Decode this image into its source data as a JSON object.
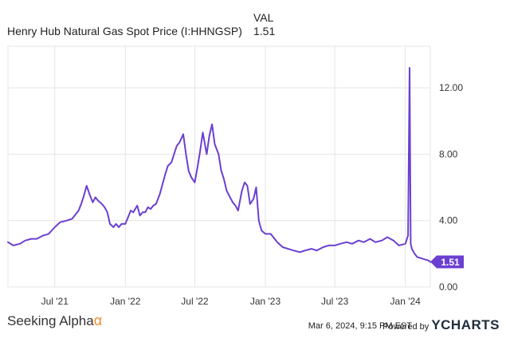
{
  "legend": {
    "column_header": "VAL",
    "series_name": "Henry Hub Natural Gas Spot Price (I:HHNGSP)",
    "series_value": "1.51"
  },
  "footer": {
    "brand": "Seeking Alpha",
    "brand_symbol": "α",
    "timestamp": "Mar 6, 2024, 9:15 PM EST",
    "powered_by": "Powered by",
    "ycharts_y": "Y",
    "ycharts_rest": "CHARTS"
  },
  "colors": {
    "line": "#6b3fd0",
    "grid": "#e4e4e4",
    "brand_accent": "#f28c28"
  },
  "chart_data": {
    "type": "line",
    "title": "",
    "xlabel": "",
    "ylabel": "",
    "ylim": [
      0,
      14.5
    ],
    "yticks": [
      0,
      4,
      8,
      12
    ],
    "ytick_labels": [
      "0.00",
      "4.00",
      "8.00",
      "12.00"
    ],
    "x_range": [
      "2021-03-01",
      "2024-03-06"
    ],
    "xticks": [
      "2021-07-01",
      "2022-01-01",
      "2022-07-01",
      "2023-01-01",
      "2023-07-01",
      "2024-01-01"
    ],
    "xtick_labels": [
      "Jul '21",
      "Jan '22",
      "Jul '22",
      "Jan '23",
      "Jul '23",
      "Jan '24"
    ],
    "grid": true,
    "last_value_label": "1.51",
    "series": [
      {
        "name": "Henry Hub Natural Gas Spot Price (I:HHNGSP)",
        "x": [
          "2021-03-01",
          "2021-03-15",
          "2021-04-01",
          "2021-04-15",
          "2021-05-01",
          "2021-05-15",
          "2021-06-01",
          "2021-06-15",
          "2021-07-01",
          "2021-07-15",
          "2021-08-01",
          "2021-08-15",
          "2021-09-01",
          "2021-09-08",
          "2021-09-15",
          "2021-09-22",
          "2021-10-01",
          "2021-10-08",
          "2021-10-15",
          "2021-10-22",
          "2021-11-01",
          "2021-11-08",
          "2021-11-15",
          "2021-11-22",
          "2021-12-01",
          "2021-12-08",
          "2021-12-15",
          "2021-12-22",
          "2022-01-01",
          "2022-01-08",
          "2022-01-15",
          "2022-01-22",
          "2022-02-01",
          "2022-02-08",
          "2022-02-15",
          "2022-02-22",
          "2022-03-01",
          "2022-03-08",
          "2022-03-15",
          "2022-03-22",
          "2022-04-01",
          "2022-04-08",
          "2022-04-15",
          "2022-04-22",
          "2022-05-01",
          "2022-05-08",
          "2022-05-15",
          "2022-05-22",
          "2022-06-01",
          "2022-06-08",
          "2022-06-15",
          "2022-06-22",
          "2022-07-01",
          "2022-07-08",
          "2022-07-15",
          "2022-07-22",
          "2022-08-01",
          "2022-08-08",
          "2022-08-15",
          "2022-08-22",
          "2022-09-01",
          "2022-09-08",
          "2022-09-15",
          "2022-09-22",
          "2022-10-01",
          "2022-10-08",
          "2022-10-15",
          "2022-10-22",
          "2022-11-01",
          "2022-11-08",
          "2022-11-15",
          "2022-11-22",
          "2022-12-01",
          "2022-12-08",
          "2022-12-15",
          "2022-12-22",
          "2023-01-01",
          "2023-01-15",
          "2023-02-01",
          "2023-02-15",
          "2023-03-01",
          "2023-03-15",
          "2023-04-01",
          "2023-04-15",
          "2023-05-01",
          "2023-05-15",
          "2023-06-01",
          "2023-06-15",
          "2023-07-01",
          "2023-07-15",
          "2023-08-01",
          "2023-08-15",
          "2023-09-01",
          "2023-09-15",
          "2023-10-01",
          "2023-10-15",
          "2023-11-01",
          "2023-11-15",
          "2023-12-01",
          "2023-12-15",
          "2024-01-01",
          "2024-01-08",
          "2024-01-12",
          "2024-01-15",
          "2024-01-18",
          "2024-01-25",
          "2024-02-01",
          "2024-02-15",
          "2024-03-01",
          "2024-03-06"
        ],
        "values": [
          2.7,
          2.5,
          2.6,
          2.8,
          2.9,
          2.9,
          3.1,
          3.2,
          3.6,
          3.9,
          4.0,
          4.1,
          4.6,
          5.0,
          5.5,
          6.1,
          5.5,
          5.1,
          5.4,
          5.2,
          5.0,
          4.8,
          4.5,
          3.8,
          3.6,
          3.8,
          3.6,
          3.8,
          3.8,
          4.2,
          4.6,
          4.5,
          4.9,
          4.3,
          4.5,
          4.5,
          4.8,
          4.7,
          4.9,
          5.0,
          5.6,
          6.2,
          6.8,
          7.3,
          7.5,
          8.0,
          8.5,
          8.7,
          9.2,
          8.0,
          7.0,
          6.6,
          6.3,
          7.2,
          8.2,
          9.3,
          8.0,
          9.1,
          9.8,
          8.6,
          8.0,
          7.0,
          6.5,
          5.8,
          5.4,
          5.1,
          4.9,
          4.6,
          5.8,
          6.3,
          6.1,
          5.0,
          5.3,
          6.0,
          4.0,
          3.4,
          3.2,
          3.2,
          2.7,
          2.4,
          2.3,
          2.2,
          2.1,
          2.2,
          2.3,
          2.2,
          2.4,
          2.5,
          2.5,
          2.6,
          2.7,
          2.6,
          2.8,
          2.7,
          2.9,
          2.7,
          2.8,
          3.0,
          2.8,
          2.5,
          2.6,
          3.1,
          13.2,
          2.6,
          2.3,
          2.0,
          1.8,
          1.7,
          1.6,
          1.51
        ]
      }
    ]
  }
}
